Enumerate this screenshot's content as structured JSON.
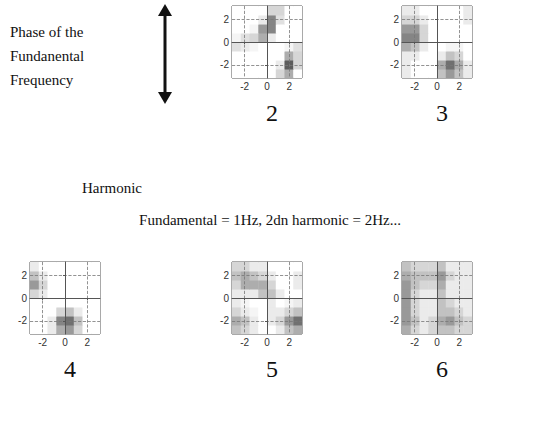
{
  "annotations": {
    "y_label": [
      "Phase of the",
      "Fundanental",
      "Frequency"
    ],
    "x_label": "Harmonic",
    "caption": "Fundamental = 1Hz, 2dn harmonic = 2Hz..."
  },
  "chart_data": [
    {
      "type": "heatmap",
      "title": "2",
      "color": "#333333",
      "zlim": [
        0,
        1
      ],
      "grid": true,
      "xlim": [
        -3.14,
        3.14
      ],
      "ylim": [
        -3.14,
        3.14
      ],
      "xticks": [
        -2,
        0,
        2
      ],
      "yticks": [
        -2,
        0,
        2
      ],
      "x": [
        -2.75,
        -1.96,
        -1.18,
        -0.39,
        0.39,
        1.18,
        1.96,
        2.75
      ],
      "y": [
        -2.75,
        -1.96,
        -1.18,
        -0.39,
        0.39,
        1.18,
        1.96,
        2.75
      ],
      "cells": [
        [
          0,
          0,
          0,
          0,
          0,
          0.2,
          0.4,
          0
        ],
        [
          0,
          0,
          0,
          0,
          0,
          0.1,
          0.8,
          0.2
        ],
        [
          0,
          0,
          0,
          0,
          0,
          0,
          0.4,
          0.2
        ],
        [
          0.15,
          0.1,
          0.05,
          0,
          0,
          0,
          0.05,
          0.15
        ],
        [
          0.05,
          0.15,
          0.2,
          0.4,
          0.1,
          0,
          0,
          0
        ],
        [
          0,
          0,
          0.05,
          0.5,
          0.6,
          0,
          0,
          0
        ],
        [
          0,
          0,
          0,
          0.1,
          0.6,
          0.15,
          0,
          0
        ],
        [
          0,
          0,
          0,
          0,
          0.2,
          0.2,
          0,
          0
        ]
      ]
    },
    {
      "type": "heatmap",
      "title": "3",
      "color": "#333333",
      "zlim": [
        0,
        1
      ],
      "grid": true,
      "xlim": [
        -3.14,
        3.14
      ],
      "ylim": [
        -3.14,
        3.14
      ],
      "xticks": [
        -2,
        0,
        2
      ],
      "yticks": [
        -2,
        0,
        2
      ],
      "x": [
        -2.75,
        -1.96,
        -1.18,
        -0.39,
        0.39,
        1.18,
        1.96,
        2.75
      ],
      "y": [
        -2.75,
        -1.96,
        -1.18,
        -0.39,
        0.39,
        1.18,
        1.96,
        2.75
      ],
      "cells": [
        [
          0.1,
          0,
          0,
          0,
          0.3,
          0.5,
          0.3,
          0.1
        ],
        [
          0.1,
          0,
          0,
          0,
          0.4,
          0.7,
          0.4,
          0.1
        ],
        [
          0.1,
          0.1,
          0,
          0,
          0.1,
          0.3,
          0.2,
          0
        ],
        [
          0.4,
          0.3,
          0.1,
          0,
          0,
          0.05,
          0.05,
          0
        ],
        [
          0.6,
          0.6,
          0.2,
          0,
          0,
          0,
          0,
          0
        ],
        [
          0.5,
          0.5,
          0.2,
          0,
          0,
          0,
          0,
          0
        ],
        [
          0.2,
          0.2,
          0.1,
          0,
          0,
          0,
          0,
          0.1
        ],
        [
          0.1,
          0.1,
          0,
          0,
          0,
          0,
          0,
          0.1
        ]
      ]
    },
    {
      "type": "heatmap",
      "title": "4",
      "color": "#333333",
      "zlim": [
        0,
        1
      ],
      "grid": true,
      "xlim": [
        -3.14,
        3.14
      ],
      "ylim": [
        -3.14,
        3.14
      ],
      "xticks": [
        -2,
        0,
        2
      ],
      "yticks": [
        -2,
        0,
        2
      ],
      "x": [
        -2.75,
        -1.96,
        -1.18,
        -0.39,
        0.39,
        1.18,
        1.96,
        2.75
      ],
      "y": [
        -2.75,
        -1.96,
        -1.18,
        -0.39,
        0.39,
        1.18,
        1.96,
        2.75
      ],
      "cells": [
        [
          0,
          0,
          0.1,
          0.4,
          0.5,
          0.2,
          0,
          0
        ],
        [
          0,
          0,
          0.1,
          0.6,
          0.7,
          0.3,
          0,
          0
        ],
        [
          0,
          0,
          0,
          0.2,
          0.3,
          0.1,
          0,
          0
        ],
        [
          0,
          0,
          0,
          0,
          0,
          0,
          0,
          0
        ],
        [
          0.2,
          0.1,
          0,
          0,
          0,
          0,
          0,
          0
        ],
        [
          0.5,
          0.2,
          0,
          0,
          0,
          0,
          0,
          0
        ],
        [
          0.3,
          0.1,
          0,
          0,
          0,
          0,
          0,
          0
        ],
        [
          0.1,
          0,
          0,
          0,
          0,
          0,
          0,
          0
        ]
      ]
    },
    {
      "type": "heatmap",
      "title": "5",
      "color": "#333333",
      "zlim": [
        0,
        1
      ],
      "grid": true,
      "xlim": [
        -3.14,
        3.14
      ],
      "ylim": [
        -3.14,
        3.14
      ],
      "xticks": [
        -2,
        0,
        2
      ],
      "yticks": [
        -2,
        0,
        2
      ],
      "x": [
        -2.75,
        -1.96,
        -1.18,
        -0.39,
        0.39,
        1.18,
        1.96,
        2.75
      ],
      "y": [
        -2.75,
        -1.96,
        -1.18,
        -0.39,
        0.39,
        1.18,
        1.96,
        2.75
      ],
      "cells": [
        [
          0.3,
          0.2,
          0.1,
          0,
          0,
          0.1,
          0.3,
          0.4
        ],
        [
          0.4,
          0.3,
          0.1,
          0,
          0.1,
          0.2,
          0.5,
          0.7
        ],
        [
          0.2,
          0.1,
          0.05,
          0,
          0.1,
          0.1,
          0.2,
          0.3
        ],
        [
          0.1,
          0.05,
          0,
          0,
          0.1,
          0,
          0.05,
          0.1
        ],
        [
          0.1,
          0.1,
          0.1,
          0.3,
          0.3,
          0.1,
          0,
          0
        ],
        [
          0.2,
          0.4,
          0.4,
          0.4,
          0.2,
          0,
          0,
          0.1
        ],
        [
          0.3,
          0.4,
          0.3,
          0.2,
          0.1,
          0,
          0,
          0.1
        ],
        [
          0.2,
          0.2,
          0.1,
          0.1,
          0,
          0,
          0,
          0
        ]
      ]
    },
    {
      "type": "heatmap",
      "title": "6",
      "color": "#333333",
      "zlim": [
        0,
        1
      ],
      "grid": true,
      "xlim": [
        -3.14,
        3.14
      ],
      "ylim": [
        -3.14,
        3.14
      ],
      "xticks": [
        -2,
        0,
        2
      ],
      "yticks": [
        -2,
        0,
        2
      ],
      "x": [
        -2.75,
        -1.96,
        -1.18,
        -0.39,
        0.39,
        1.18,
        1.96,
        2.75
      ],
      "y": [
        -2.75,
        -1.96,
        -1.18,
        -0.39,
        0.39,
        1.18,
        1.96,
        2.75
      ],
      "cells": [
        [
          0.4,
          0.2,
          0.1,
          0.2,
          0.3,
          0.3,
          0.2,
          0.2
        ],
        [
          0.5,
          0.3,
          0.1,
          0.2,
          0.4,
          0.5,
          0.3,
          0.2
        ],
        [
          0.5,
          0.2,
          0.1,
          0.1,
          0.3,
          0.3,
          0.2,
          0.1
        ],
        [
          0.5,
          0.2,
          0.1,
          0.1,
          0.3,
          0.2,
          0.1,
          0.1
        ],
        [
          0.5,
          0.2,
          0.1,
          0.1,
          0.3,
          0.1,
          0.1,
          0.1
        ],
        [
          0.5,
          0.3,
          0.2,
          0.2,
          0.4,
          0.1,
          0.1,
          0.1
        ],
        [
          0.4,
          0.3,
          0.3,
          0.3,
          0.5,
          0.2,
          0.1,
          0.1
        ],
        [
          0.3,
          0.2,
          0.2,
          0.2,
          0.3,
          0.1,
          0.1,
          0.1
        ]
      ]
    }
  ]
}
